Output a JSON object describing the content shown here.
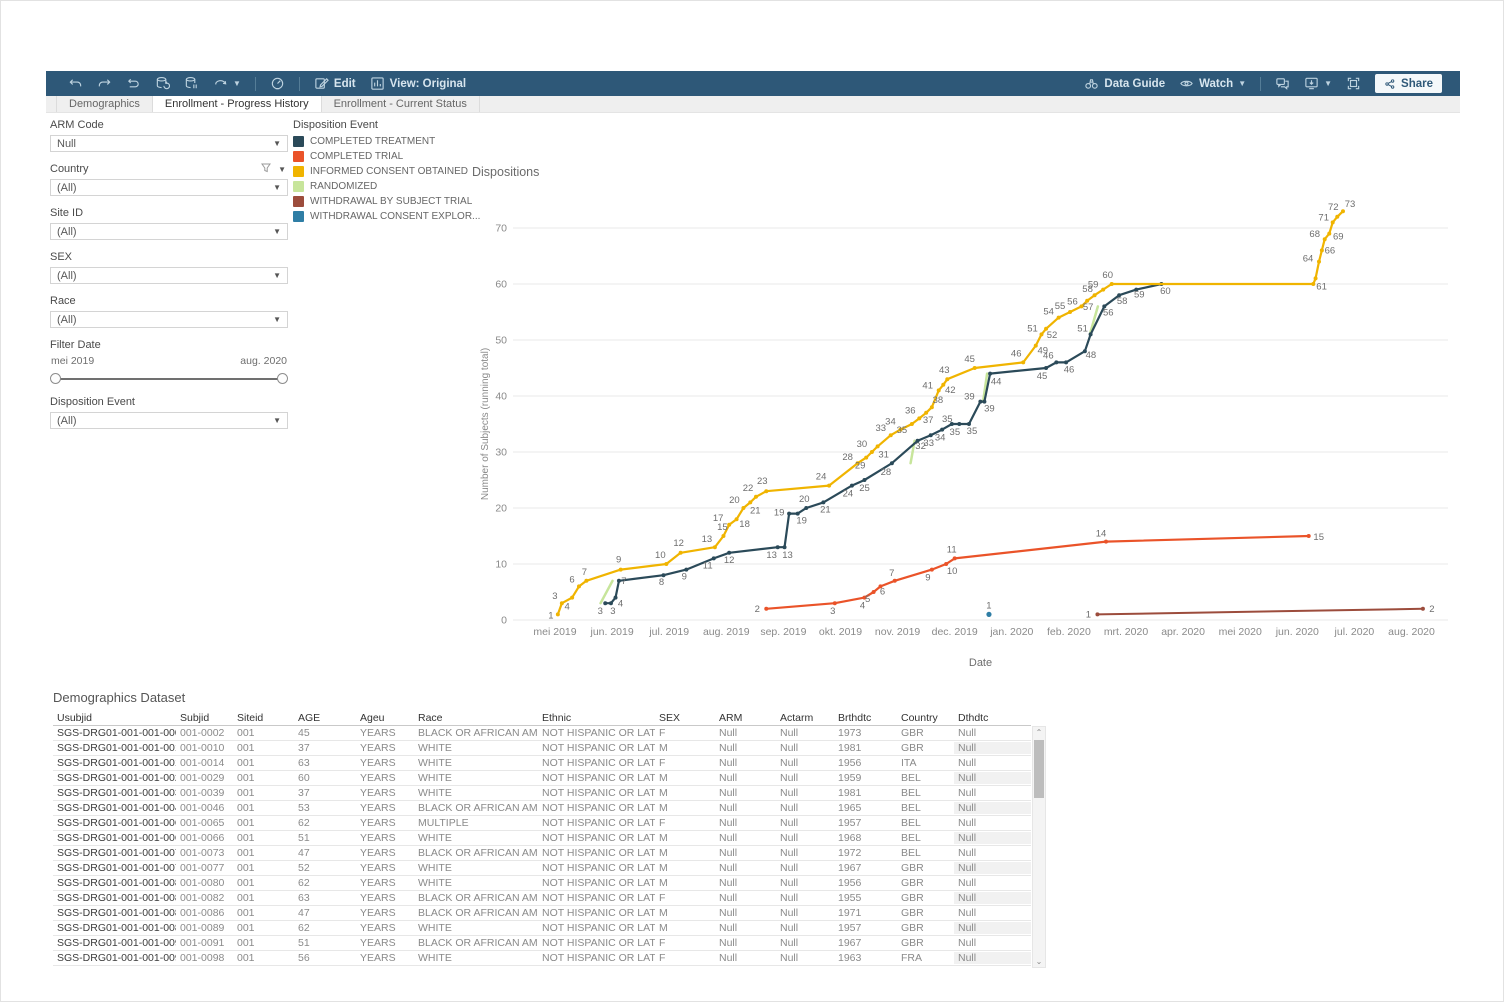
{
  "toolbar": {
    "edit_label": "Edit",
    "view_label": "View: Original",
    "data_guide_label": "Data Guide",
    "watch_label": "Watch",
    "share_label": "Share"
  },
  "tabs": [
    {
      "label": "Demographics",
      "active": false
    },
    {
      "label": "Enrollment - Progress History",
      "active": true
    },
    {
      "label": "Enrollment - Current Status",
      "active": false
    }
  ],
  "filters": [
    {
      "label": "ARM Code",
      "type": "dropdown",
      "value": "Null"
    },
    {
      "label": "Country",
      "type": "dropdown",
      "value": "(All)",
      "has_funnel": true
    },
    {
      "label": "Site ID",
      "type": "dropdown",
      "value": "(All)"
    },
    {
      "label": "SEX",
      "type": "dropdown",
      "value": "(All)"
    },
    {
      "label": "Race",
      "type": "dropdown",
      "value": "(All)"
    },
    {
      "label": "Filter Date",
      "type": "range",
      "min": "mei 2019",
      "max": "aug. 2020"
    },
    {
      "label": "Disposition Event",
      "type": "dropdown",
      "value": "(All)"
    }
  ],
  "legend": {
    "title": "Disposition Event",
    "items": [
      {
        "label": "COMPLETED TREATMENT",
        "color": "#2b4a59"
      },
      {
        "label": "COMPLETED TRIAL",
        "color": "#ea5329"
      },
      {
        "label": "INFORMED CONSENT OBTAINED",
        "color": "#f0b400"
      },
      {
        "label": "RANDOMIZED",
        "color": "#c7e59b"
      },
      {
        "label": "WITHDRAWAL BY SUBJECT TRIAL",
        "color": "#9c4c3c"
      },
      {
        "label": "WITHDRAWAL CONSENT EXPLOR...",
        "color": "#2f7ea5"
      }
    ]
  },
  "chart_data": {
    "type": "line",
    "title": "Dispositions",
    "xlabel": "Date",
    "ylabel": "Number of Subjects (running total)",
    "ylim": [
      0,
      75
    ],
    "yticks": [
      0,
      10,
      20,
      30,
      40,
      50,
      60,
      70
    ],
    "x_axis_months": [
      "mei 2019",
      "jun. 2019",
      "jul. 2019",
      "aug. 2019",
      "sep. 2019",
      "okt. 2019",
      "nov. 2019",
      "dec. 2019",
      "jan. 2020",
      "feb. 2020",
      "mrt. 2020",
      "apr. 2020",
      "mei 2020",
      "jun. 2020",
      "jul. 2020",
      "aug. 2020"
    ],
    "series": [
      {
        "name": "INFORMED CONSENT OBTAINED",
        "color": "#f0b400",
        "points": [
          [
            0.05,
            1,
            -7,
            4
          ],
          [
            0.12,
            3,
            -7,
            -4
          ],
          [
            0.3,
            4,
            -5,
            12
          ],
          [
            0.42,
            6,
            -7,
            -4
          ],
          [
            0.55,
            7,
            -2,
            -6
          ],
          [
            1.15,
            9,
            -2,
            -7
          ],
          [
            1.95,
            10,
            -6,
            -6
          ],
          [
            2.2,
            12,
            -2,
            -7
          ],
          [
            2.8,
            13,
            -8,
            -5
          ],
          [
            2.95,
            15,
            -1,
            -6
          ],
          [
            3.05,
            17,
            -11,
            -4
          ],
          [
            3.18,
            18,
            8,
            8
          ],
          [
            3.3,
            20,
            -9,
            -5
          ],
          [
            3.42,
            21,
            5,
            11
          ],
          [
            3.52,
            22,
            -8,
            -6
          ],
          [
            3.7,
            23,
            -4,
            -7
          ],
          [
            4.8,
            24,
            -8,
            -6
          ],
          [
            5.3,
            28,
            -10,
            -3
          ],
          [
            5.45,
            29,
            -6,
            11
          ],
          [
            5.55,
            30,
            -10,
            -5
          ],
          [
            5.65,
            31,
            6,
            11
          ],
          [
            5.88,
            33,
            -10,
            -4
          ],
          [
            6.05,
            34,
            -10,
            -5
          ],
          [
            6.25,
            35,
            -10,
            9
          ],
          [
            6.38,
            36,
            -9,
            -5
          ],
          [
            6.5,
            37,
            2,
            10
          ],
          [
            6.6,
            38,
            6,
            -4
          ],
          [
            6.72,
            41,
            -11,
            -2
          ],
          [
            6.8,
            42,
            7,
            8
          ],
          [
            6.87,
            43,
            -3,
            -6
          ],
          [
            7.35,
            45,
            -5,
            -6
          ],
          [
            8.2,
            46,
            -7,
            -6
          ],
          [
            8.42,
            49,
            7,
            8
          ],
          [
            8.52,
            51,
            -9,
            -3
          ],
          [
            8.6,
            52,
            6,
            9
          ],
          [
            8.82,
            54,
            -10,
            -3
          ],
          [
            9.02,
            55,
            -10,
            -3
          ],
          [
            9.22,
            56,
            -9,
            -2
          ],
          [
            9.32,
            57,
            1,
            9
          ],
          [
            9.45,
            58,
            -7,
            -3
          ],
          [
            9.6,
            59,
            -10,
            -2
          ],
          [
            9.75,
            60,
            -4,
            -6
          ],
          [
            13.28,
            60,
            null,
            null
          ],
          [
            13.32,
            61,
            6,
            11
          ],
          [
            13.38,
            64,
            -11,
            0
          ],
          [
            13.43,
            66,
            8,
            3
          ],
          [
            13.48,
            68,
            -10,
            -2
          ],
          [
            13.56,
            69,
            9,
            6
          ],
          [
            13.62,
            71,
            -9,
            -2
          ],
          [
            13.7,
            72,
            -4,
            -7
          ],
          [
            13.8,
            73,
            7,
            -4
          ]
        ]
      },
      {
        "name": "COMPLETED TREATMENT",
        "color": "#2b4a59",
        "points": [
          [
            0.88,
            3,
            -5,
            11
          ],
          [
            0.98,
            3,
            2,
            11
          ],
          [
            1.06,
            4,
            5,
            9
          ],
          [
            1.12,
            7,
            5,
            3
          ],
          [
            1.9,
            8,
            -2,
            10
          ],
          [
            2.3,
            9,
            -2,
            10
          ],
          [
            2.78,
            11,
            -6,
            10
          ],
          [
            3.05,
            12,
            0,
            10
          ],
          [
            3.9,
            13,
            -6,
            11
          ],
          [
            4.02,
            13,
            3,
            11
          ],
          [
            4.1,
            19,
            -10,
            2
          ],
          [
            4.25,
            19,
            4,
            10
          ],
          [
            4.4,
            20,
            -2,
            -6
          ],
          [
            4.7,
            21,
            2,
            10
          ],
          [
            5.2,
            24,
            -4,
            11
          ],
          [
            5.42,
            25,
            0,
            11
          ],
          [
            5.9,
            28,
            -6,
            12
          ],
          [
            6.35,
            32,
            3,
            8
          ],
          [
            6.58,
            33,
            -2,
            11
          ],
          [
            6.78,
            34,
            -2,
            11
          ],
          [
            6.95,
            35,
            3,
            11
          ],
          [
            7.08,
            35,
            -12,
            -2
          ],
          [
            7.25,
            35,
            3,
            10
          ],
          [
            7.45,
            39,
            -11,
            -2
          ],
          [
            7.52,
            39,
            5,
            10
          ],
          [
            7.62,
            44,
            6,
            11
          ],
          [
            8.6,
            45,
            -4,
            11
          ],
          [
            8.78,
            46,
            -8,
            -4
          ],
          [
            8.95,
            46,
            3,
            10
          ],
          [
            9.28,
            48,
            6,
            7
          ],
          [
            9.38,
            51,
            -8,
            -3
          ],
          [
            9.62,
            56,
            4,
            9
          ],
          [
            9.88,
            58,
            3,
            9
          ],
          [
            10.18,
            59,
            3,
            8
          ],
          [
            10.62,
            60,
            4,
            10
          ]
        ]
      },
      {
        "name": "COMPLETED TRIAL",
        "color": "#ea5329",
        "points": [
          [
            3.7,
            2,
            -9,
            3
          ],
          [
            4.9,
            3,
            -2,
            11
          ],
          [
            5.42,
            4,
            -2,
            11
          ],
          [
            5.58,
            5,
            -6,
            10
          ],
          [
            5.7,
            6,
            2,
            8
          ],
          [
            5.95,
            7,
            -3,
            -5
          ],
          [
            6.6,
            9,
            -4,
            11
          ],
          [
            6.85,
            10,
            6,
            10
          ],
          [
            7.0,
            11,
            -3,
            -6
          ],
          [
            9.65,
            14,
            -5,
            -5
          ],
          [
            13.2,
            15,
            10,
            4
          ]
        ]
      },
      {
        "name": "RANDOMIZED",
        "color": "#c7e59b",
        "segments": [
          [
            [
              0.85,
              3
            ],
            [
              1.06,
              7
            ]
          ],
          [
            [
              6.28,
              28
            ],
            [
              6.35,
              32
            ]
          ],
          [
            [
              7.55,
              39
            ],
            [
              7.62,
              44
            ]
          ],
          [
            [
              9.42,
              51
            ],
            [
              9.56,
              56
            ]
          ]
        ]
      },
      {
        "name": "WITHDRAWAL BY SUBJECT TRIAL",
        "color": "#9c4c3c",
        "points": [
          [
            9.5,
            1,
            -9,
            3
          ],
          [
            15.2,
            2,
            9,
            3
          ]
        ]
      },
      {
        "name": "WITHDRAWAL CONSENT EXPLOR...",
        "color": "#2f7ea5",
        "dot_only": true,
        "points": [
          [
            7.6,
            1,
            0,
            -6
          ]
        ]
      }
    ]
  },
  "table": {
    "title": "Demographics Dataset",
    "columns": [
      "Usubjid",
      "Subjid",
      "Siteid",
      "AGE",
      "Ageu",
      "Race",
      "Ethnic",
      "SEX",
      "ARM",
      "Actarm",
      "Brthdtc",
      "Country",
      "Dthdtc"
    ],
    "rows": [
      [
        "SGS-DRG01-001-001-0002",
        "001-0002",
        "001",
        "45",
        "YEARS",
        "BLACK OR AFRICAN AMER..",
        "NOT HISPANIC OR LATINO",
        "F",
        "Null",
        "Null",
        "1973",
        "GBR",
        "Null"
      ],
      [
        "SGS-DRG01-001-001-0010",
        "001-0010",
        "001",
        "37",
        "YEARS",
        "WHITE",
        "NOT HISPANIC OR LATINO",
        "M",
        "Null",
        "Null",
        "1981",
        "GBR",
        "Null"
      ],
      [
        "SGS-DRG01-001-001-0014",
        "001-0014",
        "001",
        "63",
        "YEARS",
        "WHITE",
        "NOT HISPANIC OR LATINO",
        "F",
        "Null",
        "Null",
        "1956",
        "ITA",
        "Null"
      ],
      [
        "SGS-DRG01-001-001-0029",
        "001-0029",
        "001",
        "60",
        "YEARS",
        "WHITE",
        "NOT HISPANIC OR LATINO",
        "M",
        "Null",
        "Null",
        "1959",
        "BEL",
        "Null"
      ],
      [
        "SGS-DRG01-001-001-0039",
        "001-0039",
        "001",
        "37",
        "YEARS",
        "WHITE",
        "NOT HISPANIC OR LATINO",
        "M",
        "Null",
        "Null",
        "1981",
        "BEL",
        "Null"
      ],
      [
        "SGS-DRG01-001-001-0046",
        "001-0046",
        "001",
        "53",
        "YEARS",
        "BLACK OR AFRICAN AMER..",
        "NOT HISPANIC OR LATINO",
        "M",
        "Null",
        "Null",
        "1965",
        "BEL",
        "Null"
      ],
      [
        "SGS-DRG01-001-001-0065",
        "001-0065",
        "001",
        "62",
        "YEARS",
        "MULTIPLE",
        "NOT HISPANIC OR LATINO",
        "F",
        "Null",
        "Null",
        "1957",
        "BEL",
        "Null"
      ],
      [
        "SGS-DRG01-001-001-0066",
        "001-0066",
        "001",
        "51",
        "YEARS",
        "WHITE",
        "NOT HISPANIC OR LATINO",
        "M",
        "Null",
        "Null",
        "1968",
        "BEL",
        "Null"
      ],
      [
        "SGS-DRG01-001-001-0073",
        "001-0073",
        "001",
        "47",
        "YEARS",
        "BLACK OR AFRICAN AMER..",
        "NOT HISPANIC OR LATINO",
        "M",
        "Null",
        "Null",
        "1972",
        "BEL",
        "Null"
      ],
      [
        "SGS-DRG01-001-001-0077",
        "001-0077",
        "001",
        "52",
        "YEARS",
        "WHITE",
        "NOT HISPANIC OR LATINO",
        "M",
        "Null",
        "Null",
        "1967",
        "GBR",
        "Null"
      ],
      [
        "SGS-DRG01-001-001-0080",
        "001-0080",
        "001",
        "62",
        "YEARS",
        "WHITE",
        "NOT HISPANIC OR LATINO",
        "M",
        "Null",
        "Null",
        "1956",
        "GBR",
        "Null"
      ],
      [
        "SGS-DRG01-001-001-0082",
        "001-0082",
        "001",
        "63",
        "YEARS",
        "BLACK OR AFRICAN AMER..",
        "NOT HISPANIC OR LATINO",
        "F",
        "Null",
        "Null",
        "1955",
        "GBR",
        "Null"
      ],
      [
        "SGS-DRG01-001-001-0086",
        "001-0086",
        "001",
        "47",
        "YEARS",
        "BLACK OR AFRICAN AMER..",
        "NOT HISPANIC OR LATINO",
        "M",
        "Null",
        "Null",
        "1971",
        "GBR",
        "Null"
      ],
      [
        "SGS-DRG01-001-001-0089",
        "001-0089",
        "001",
        "62",
        "YEARS",
        "WHITE",
        "NOT HISPANIC OR LATINO",
        "M",
        "Null",
        "Null",
        "1957",
        "GBR",
        "Null"
      ],
      [
        "SGS-DRG01-001-001-0091",
        "001-0091",
        "001",
        "51",
        "YEARS",
        "BLACK OR AFRICAN AMER..",
        "NOT HISPANIC OR LATINO",
        "F",
        "Null",
        "Null",
        "1967",
        "GBR",
        "Null"
      ],
      [
        "SGS-DRG01-001-001-0098",
        "001-0098",
        "001",
        "56",
        "YEARS",
        "WHITE",
        "NOT HISPANIC OR LATINO",
        "F",
        "Null",
        "Null",
        "1963",
        "FRA",
        "Null"
      ]
    ]
  }
}
